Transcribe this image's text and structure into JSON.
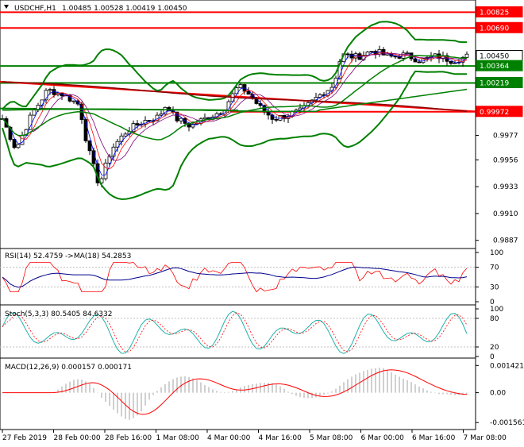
{
  "main": {
    "symbol": "USDCHF,H1",
    "ohlc": "1.00485 1.00528 1.00419 1.00450",
    "y_ticks": [
      "0.9977",
      "0.9956",
      "0.9933",
      "0.9910",
      "0.9887"
    ],
    "price_labels": [
      {
        "text": "1.00825",
        "value": 1.00825,
        "bg": "#ff0000",
        "fg": "#ffffff"
      },
      {
        "text": "1.00690",
        "value": 1.0069,
        "bg": "#ff0000",
        "fg": "#ffffff"
      },
      {
        "text": "1.00450",
        "value": 1.0045,
        "bg": "#ffffff",
        "fg": "#000000"
      },
      {
        "text": "1.00364",
        "value": 1.00364,
        "bg": "#008000",
        "fg": "#ffffff"
      },
      {
        "text": "1.00219",
        "value": 1.00219,
        "bg": "#008000",
        "fg": "#ffffff"
      },
      {
        "text": "0.99972",
        "value": 0.99972,
        "bg": "#ff0000",
        "fg": "#ffffff"
      }
    ],
    "ylim": [
      0.988,
      1.0093
    ]
  },
  "rsi": {
    "label": "RSI(14) 52.4759   ->MA(18) 54.2853",
    "ticks": [
      "100",
      "70",
      "30",
      "0"
    ]
  },
  "stoch": {
    "label": "Stoch(5,3,3) 80.5405 84.6332",
    "ticks": [
      "100",
      "80",
      "20",
      "0"
    ]
  },
  "macd": {
    "label": "MACD(12,26,9) 0.000157 0.000171",
    "ticks": [
      "0.001421",
      "0.00",
      "-0.001561"
    ]
  },
  "x_labels": [
    "27 Feb 2019",
    "28 Feb 00:00",
    "28 Feb 16:00",
    "1 Mar 08:00",
    "4 Mar 00:00",
    "4 Mar 16:00",
    "5 Mar 08:00",
    "6 Mar 00:00",
    "6 Mar 16:00",
    "7 Mar 08:00"
  ],
  "chart_data": {
    "type": "line",
    "title": "USDCHF,H1",
    "x": [
      "27 Feb 2019",
      "28 Feb 00:00",
      "28 Feb 16:00",
      "1 Mar 08:00",
      "4 Mar 00:00",
      "4 Mar 16:00",
      "5 Mar 08:00",
      "6 Mar 00:00",
      "6 Mar 16:00",
      "7 Mar 08:00"
    ],
    "series": [
      {
        "values": [
          0.9996,
          0.9987,
          0.9948,
          0.999,
          1.0,
          0.999,
          1.0012,
          1.005,
          1.0044,
          1.0045
        ]
      },
      {
        "values": [
          1.0022,
          1.0012,
          0.999,
          0.9998,
          1.0,
          1.0,
          1.0006,
          1.0024,
          1.0032,
          1.0036
        ]
      }
    ],
    "ylim": [
      0.988,
      1.0093
    ],
    "colors": {
      "price": "#000000",
      "bollinger": "#008000",
      "red_lines": "#ff0000",
      "green_lines": "#008000"
    }
  }
}
